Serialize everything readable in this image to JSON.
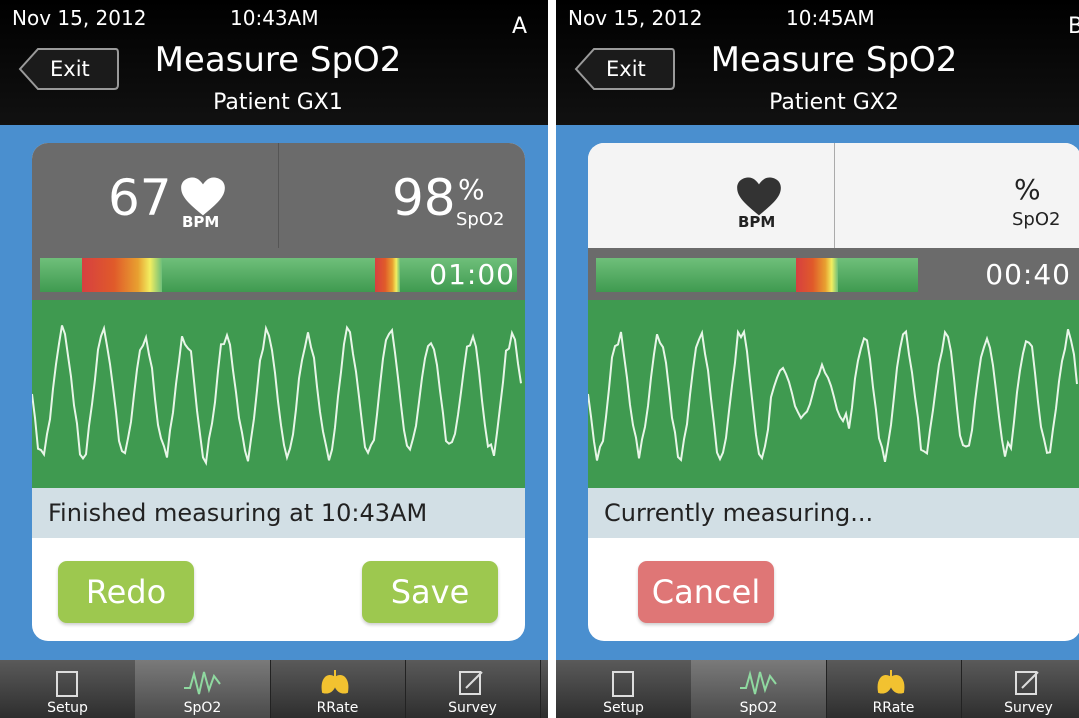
{
  "panels": [
    {
      "date": "Nov 15, 2012",
      "time": "10:43AM",
      "label": "A",
      "exit": "Exit",
      "title": "Measure SpO2",
      "patient": "Patient GX1",
      "theme": "dark",
      "bpm": "67",
      "bpm_unit": "BPM",
      "percent": "%",
      "spo2": "98",
      "spo2_unit": "SpO2",
      "timer": "01:00",
      "status": "Finished measuring at 10:43AM",
      "buttons": [
        {
          "label": "Redo",
          "color": "#9dc84f"
        },
        {
          "label": "Save",
          "color": "#9dc84f"
        }
      ],
      "tabs": [
        "Setup",
        "SpO2",
        "RRate",
        "Survey"
      ]
    },
    {
      "date": "Nov 15, 2012",
      "time": "10:45AM",
      "label": "B",
      "exit": "Exit",
      "title": "Measure SpO2",
      "patient": "Patient GX2",
      "theme": "light",
      "bpm_unit": "BPM",
      "percent": "%",
      "spo2_unit": "SpO2",
      "timer": "00:40",
      "status": "Currently measuring...",
      "buttons": [
        {
          "label": "Cancel",
          "color": "#df7676"
        }
      ],
      "tabs": [
        "Setup",
        "SpO2",
        "RRate",
        "Survey"
      ]
    }
  ]
}
